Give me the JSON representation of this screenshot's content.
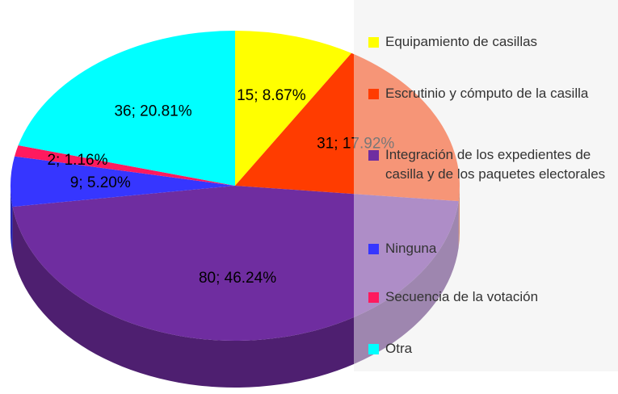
{
  "chart_data": {
    "type": "pie",
    "categories": [
      "Equipamiento de casillas",
      "Escrutinio y cómputo de la casilla",
      "Integración de los expedientes de casilla y de los paquetes electorales",
      "Ninguna",
      "Secuencia de la votación",
      "Otra"
    ],
    "values": [
      15,
      31,
      80,
      9,
      2,
      36
    ],
    "value_labels": [
      "15; 8.67%",
      "31; 17.92%",
      "80; 46.24%",
      "9; 5.20%",
      "2; 1.16%",
      "36; 20.81%"
    ],
    "colors": [
      "#ffff00",
      "#ff3c00",
      "#6f2da0",
      "#3636ff",
      "#ff1a5e",
      "#00ffff"
    ],
    "legend": "right"
  }
}
